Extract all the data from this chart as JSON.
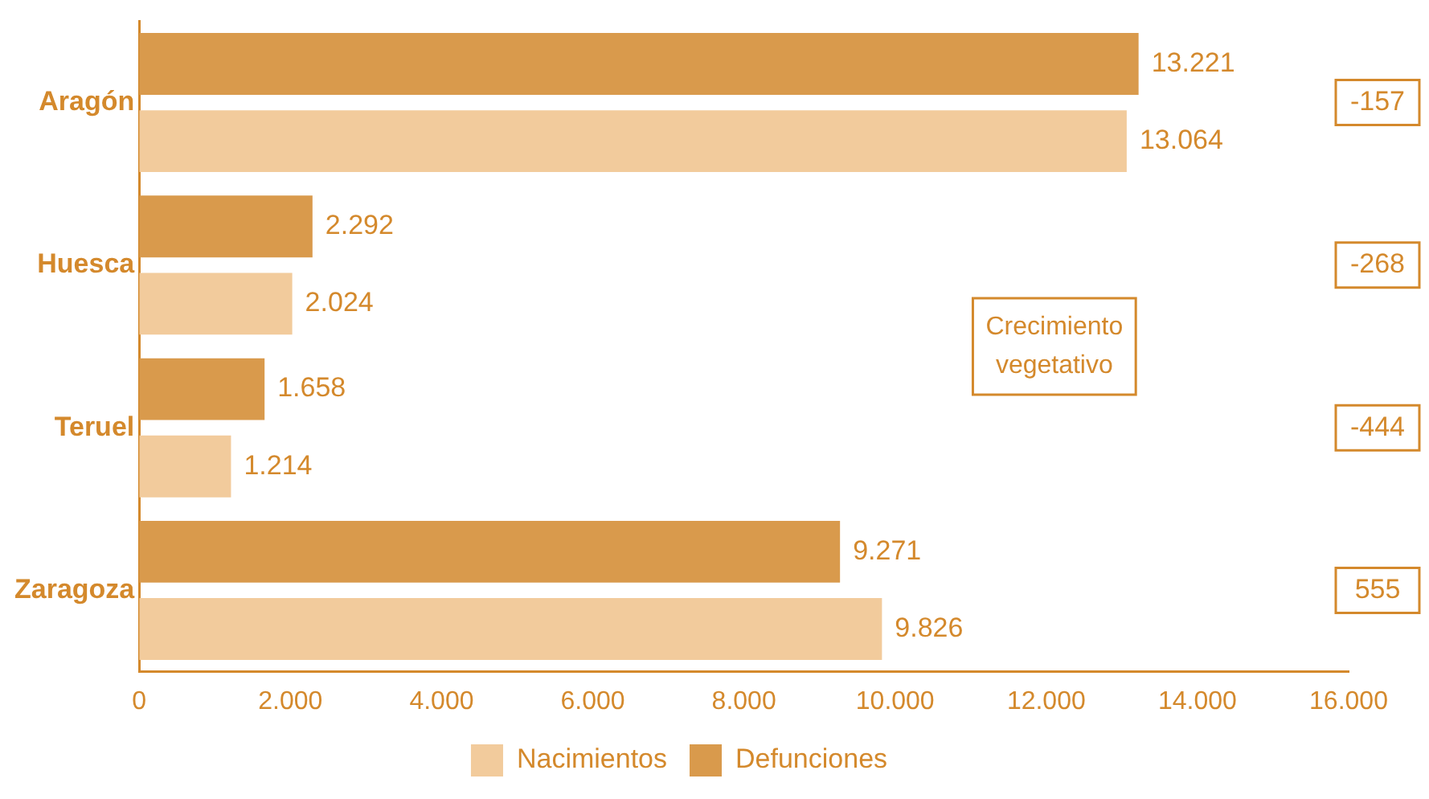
{
  "chart_data": {
    "type": "bar",
    "orientation": "horizontal",
    "categories": [
      "Aragón",
      "Huesca",
      "Teruel",
      "Zaragoza"
    ],
    "series": [
      {
        "name": "Nacimientos",
        "color": "#f2cb9c",
        "values": [
          13064,
          2024,
          1214,
          9826
        ],
        "value_labels": [
          "13.064",
          "2.024",
          "1.214",
          "9.826"
        ]
      },
      {
        "name": "Defunciones",
        "color": "#d99a4c",
        "values": [
          13221,
          2292,
          1658,
          9271
        ],
        "value_labels": [
          "13.221",
          "2.292",
          "1.658",
          "9.271"
        ]
      }
    ],
    "xlim": [
      0,
      16000
    ],
    "xticks": [
      0,
      {
        "value": 2000,
        "label": "2.000"
      },
      {
        "value": 4000,
        "label": "4.000"
      },
      {
        "value": 6000,
        "label": "6.000"
      },
      {
        "value": 8000,
        "label": "8.000"
      },
      {
        "value": 10000,
        "label": "10.000"
      },
      {
        "value": 12000,
        "label": "12.000"
      },
      {
        "value": 14000,
        "label": "14.000"
      },
      {
        "value": 16000,
        "label": "16.000"
      }
    ],
    "grid": false,
    "legend": "bottom",
    "annotations": [
      "Crecimiento vegetativo",
      "-157",
      "-268",
      "-444",
      "555"
    ]
  }
}
